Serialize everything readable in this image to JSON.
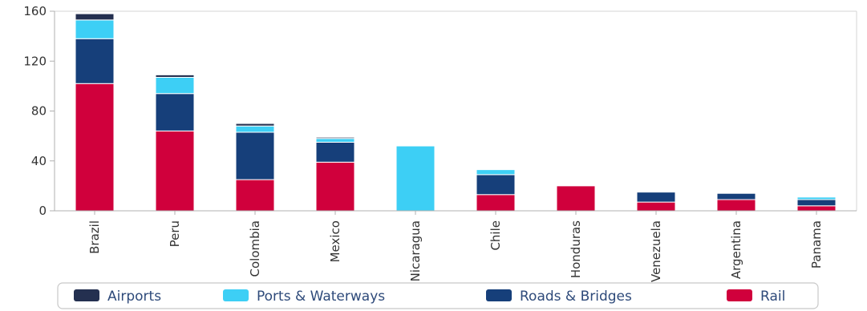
{
  "chart_data": {
    "type": "bar",
    "stacked": true,
    "title": "",
    "xlabel": "",
    "ylabel": "",
    "ylim": [
      0,
      160
    ],
    "yticks": [
      0,
      40,
      80,
      120,
      160
    ],
    "grid": false,
    "legend_position": "bottom",
    "categories": [
      "Brazil",
      "Peru",
      "Colombia",
      "Mexico",
      "Nicaragua",
      "Chile",
      "Honduras",
      "Venezuela",
      "Argentina",
      "Panama"
    ],
    "series": [
      {
        "name": "Rail",
        "color": "#d0003c",
        "values": [
          102,
          64,
          25,
          39,
          0,
          13,
          20,
          7,
          9,
          4
        ]
      },
      {
        "name": "Roads & Bridges",
        "color": "#163f7a",
        "values": [
          36,
          30,
          38,
          16,
          0,
          16,
          0,
          8,
          5,
          5
        ]
      },
      {
        "name": "Ports & Waterways",
        "color": "#3dcff5",
        "values": [
          15,
          13,
          5,
          3,
          52,
          4,
          0,
          0,
          0,
          2
        ]
      },
      {
        "name": "Airports",
        "color": "#243050",
        "values": [
          5,
          2,
          2,
          1,
          0,
          0,
          0,
          0,
          0,
          0
        ]
      }
    ],
    "legend_order": [
      "Airports",
      "Ports & Waterways",
      "Roads & Bridges",
      "Rail"
    ]
  }
}
